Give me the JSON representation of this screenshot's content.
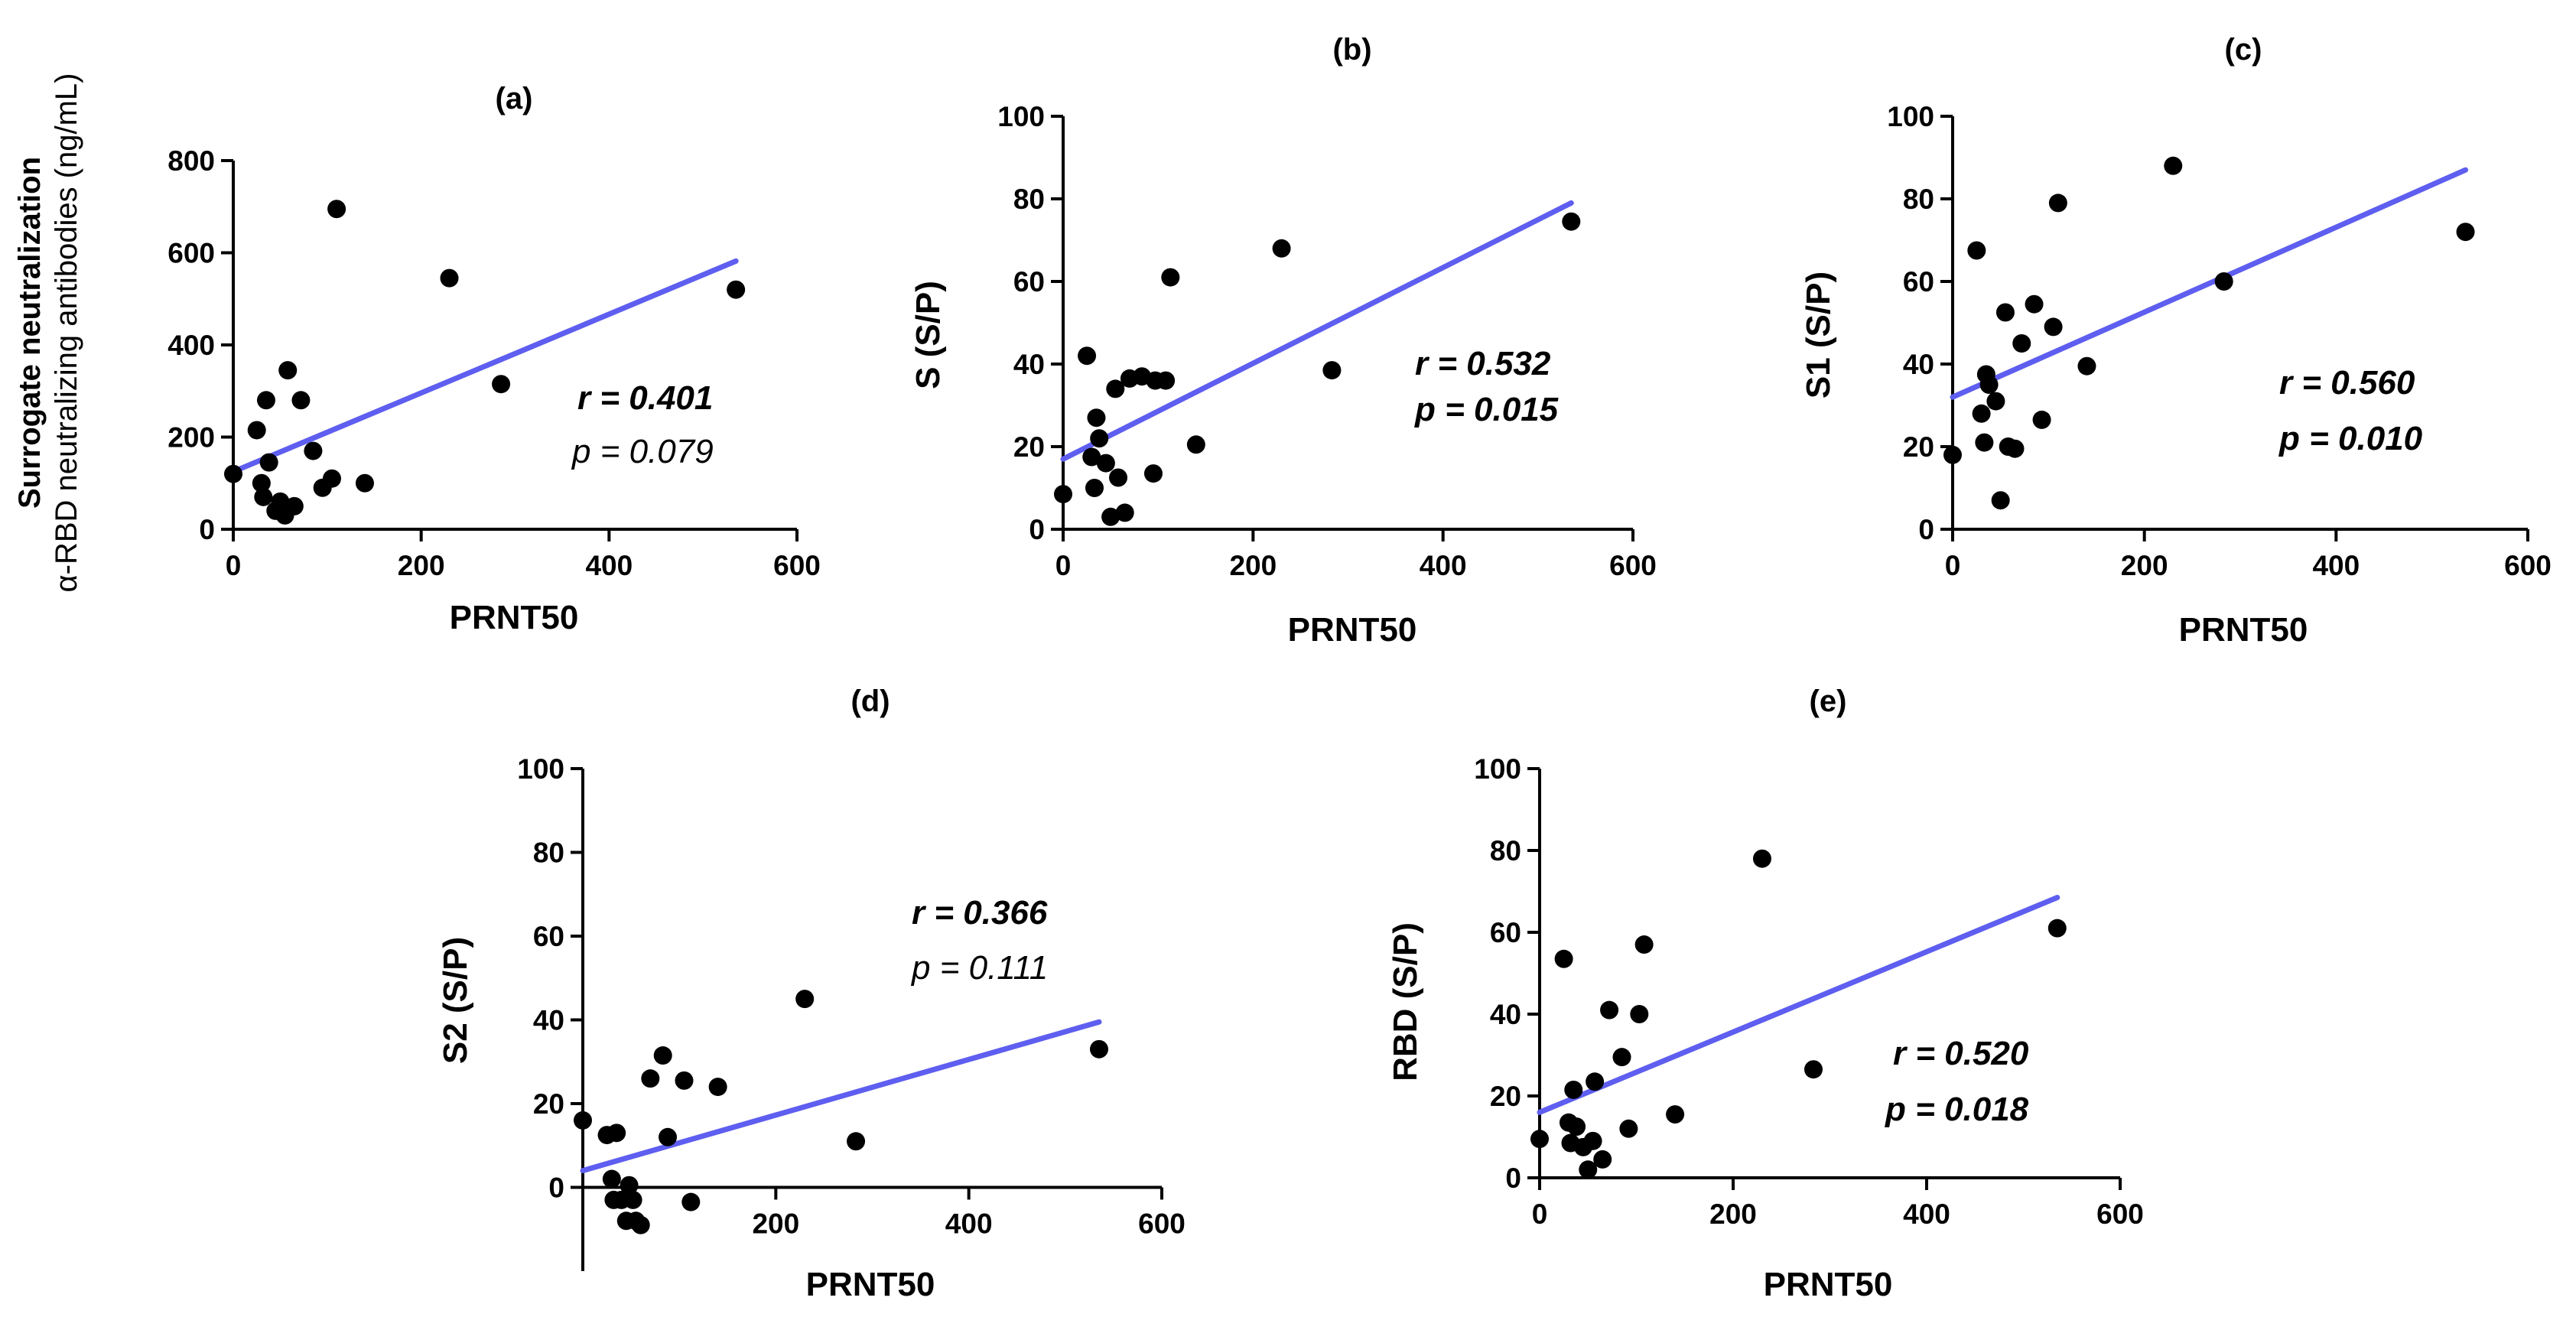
{
  "chart_data": [
    {
      "type": "scatter",
      "label": "(a)",
      "xlabel": "PRNT50",
      "ylabel_bold": "Surrogate neutralization",
      "ylabel": "α-RBD neutralizing antibodies (ng/mL)",
      "xlim": [
        0,
        600
      ],
      "ylim": [
        0,
        800
      ],
      "xticks": [
        0,
        200,
        400,
        600
      ],
      "yticks": [
        0,
        200,
        400,
        600,
        800
      ],
      "points": [
        [
          0,
          120
        ],
        [
          25,
          215
        ],
        [
          30,
          100
        ],
        [
          32,
          70
        ],
        [
          35,
          280
        ],
        [
          38,
          145
        ],
        [
          45,
          40
        ],
        [
          50,
          60
        ],
        [
          55,
          30
        ],
        [
          58,
          345
        ],
        [
          65,
          50
        ],
        [
          72,
          280
        ],
        [
          85,
          170
        ],
        [
          95,
          90
        ],
        [
          105,
          110
        ],
        [
          110,
          695
        ],
        [
          140,
          100
        ],
        [
          230,
          545
        ],
        [
          285,
          315
        ],
        [
          535,
          520
        ]
      ],
      "fit": [
        [
          0,
          125
        ],
        [
          535,
          582
        ]
      ],
      "r_text": "r = 0.401",
      "p_text": "p = 0.079",
      "p_significant": false
    },
    {
      "type": "scatter",
      "label": "(b)",
      "xlabel": "PRNT50",
      "ylabel": "S (S/P)",
      "xlim": [
        0,
        600
      ],
      "ylim": [
        0,
        100
      ],
      "xticks": [
        0,
        200,
        400,
        600
      ],
      "yticks": [
        0,
        20,
        40,
        60,
        80,
        100
      ],
      "points": [
        [
          0,
          8.5
        ],
        [
          25,
          42
        ],
        [
          30,
          17.5
        ],
        [
          33,
          10
        ],
        [
          35,
          27
        ],
        [
          38,
          22
        ],
        [
          45,
          16
        ],
        [
          50,
          3
        ],
        [
          55,
          34
        ],
        [
          58,
          12.5
        ],
        [
          65,
          4
        ],
        [
          70,
          36.5
        ],
        [
          83,
          37
        ],
        [
          95,
          13.5
        ],
        [
          97,
          36
        ],
        [
          108,
          36
        ],
        [
          113,
          61
        ],
        [
          140,
          20.5
        ],
        [
          230,
          68
        ],
        [
          283,
          38.5
        ],
        [
          535,
          74.5
        ]
      ],
      "fit": [
        [
          0,
          17
        ],
        [
          535,
          79
        ]
      ],
      "r_text": "r = 0.532",
      "p_text": "p = 0.015",
      "p_significant": true
    },
    {
      "type": "scatter",
      "label": "(c)",
      "xlabel": "PRNT50",
      "ylabel": "S1 (S/P)",
      "xlim": [
        0,
        600
      ],
      "ylim": [
        0,
        100
      ],
      "xticks": [
        0,
        200,
        400,
        600
      ],
      "yticks": [
        0,
        20,
        40,
        60,
        80,
        100
      ],
      "points": [
        [
          0,
          18
        ],
        [
          25,
          67.5
        ],
        [
          30,
          28
        ],
        [
          33,
          21
        ],
        [
          35,
          37.5
        ],
        [
          38,
          35
        ],
        [
          45,
          31
        ],
        [
          50,
          7
        ],
        [
          55,
          52.5
        ],
        [
          58,
          20
        ],
        [
          65,
          19.5
        ],
        [
          72,
          45
        ],
        [
          85,
          54.5
        ],
        [
          93,
          26.5
        ],
        [
          105,
          49
        ],
        [
          110,
          79
        ],
        [
          140,
          39.5
        ],
        [
          230,
          88
        ],
        [
          283,
          60
        ],
        [
          535,
          72
        ]
      ],
      "fit": [
        [
          0,
          32
        ],
        [
          535,
          87
        ]
      ],
      "r_text": "r = 0.560",
      "p_text": "p = 0.010",
      "p_significant": true
    },
    {
      "type": "scatter",
      "label": "(d)",
      "xlabel": "PRNT50",
      "ylabel": "S2 (S/P)",
      "xlim": [
        0,
        600
      ],
      "ylim": [
        -20,
        100
      ],
      "xticks": [
        200,
        400,
        600
      ],
      "yticks": [
        0,
        20,
        40,
        60,
        80,
        100
      ],
      "points": [
        [
          0,
          16
        ],
        [
          25,
          12.5
        ],
        [
          30,
          2
        ],
        [
          32,
          -3
        ],
        [
          35,
          13
        ],
        [
          40,
          -3
        ],
        [
          45,
          -8
        ],
        [
          48,
          0.5
        ],
        [
          52,
          -3
        ],
        [
          55,
          -8
        ],
        [
          60,
          -9
        ],
        [
          70,
          26
        ],
        [
          83,
          31.5
        ],
        [
          88,
          12
        ],
        [
          105,
          25.5
        ],
        [
          112,
          -3.5
        ],
        [
          140,
          24
        ],
        [
          230,
          45
        ],
        [
          283,
          11
        ],
        [
          535,
          33
        ]
      ],
      "fit": [
        [
          0,
          4
        ],
        [
          535,
          39.5
        ]
      ],
      "r_text": "r = 0.366",
      "p_text": "p = 0.111",
      "p_significant": false
    },
    {
      "type": "scatter",
      "label": "(e)",
      "xlabel": "PRNT50",
      "ylabel": "RBD (S/P)",
      "xlim": [
        0,
        600
      ],
      "ylim": [
        0,
        100
      ],
      "xticks": [
        0,
        200,
        400,
        600
      ],
      "yticks": [
        0,
        20,
        40,
        60,
        80,
        100
      ],
      "points": [
        [
          0,
          9.5
        ],
        [
          25,
          53.5
        ],
        [
          30,
          13.5
        ],
        [
          32,
          8.5
        ],
        [
          35,
          21.5
        ],
        [
          38,
          12.5
        ],
        [
          45,
          7.5
        ],
        [
          50,
          2
        ],
        [
          55,
          9
        ],
        [
          57,
          23.5
        ],
        [
          65,
          4.5
        ],
        [
          72,
          41
        ],
        [
          85,
          29.5
        ],
        [
          92,
          12
        ],
        [
          103,
          40
        ],
        [
          108,
          57
        ],
        [
          140,
          15.5
        ],
        [
          230,
          78
        ],
        [
          283,
          26.5
        ],
        [
          535,
          61
        ]
      ],
      "fit": [
        [
          0,
          16
        ],
        [
          535,
          68.5
        ]
      ],
      "r_text": "r = 0.520",
      "p_text": "p = 0.018",
      "p_significant": true
    }
  ],
  "colors": {
    "fit_line": "#5e5ef0",
    "points": "#000000",
    "axes": "#000000"
  }
}
